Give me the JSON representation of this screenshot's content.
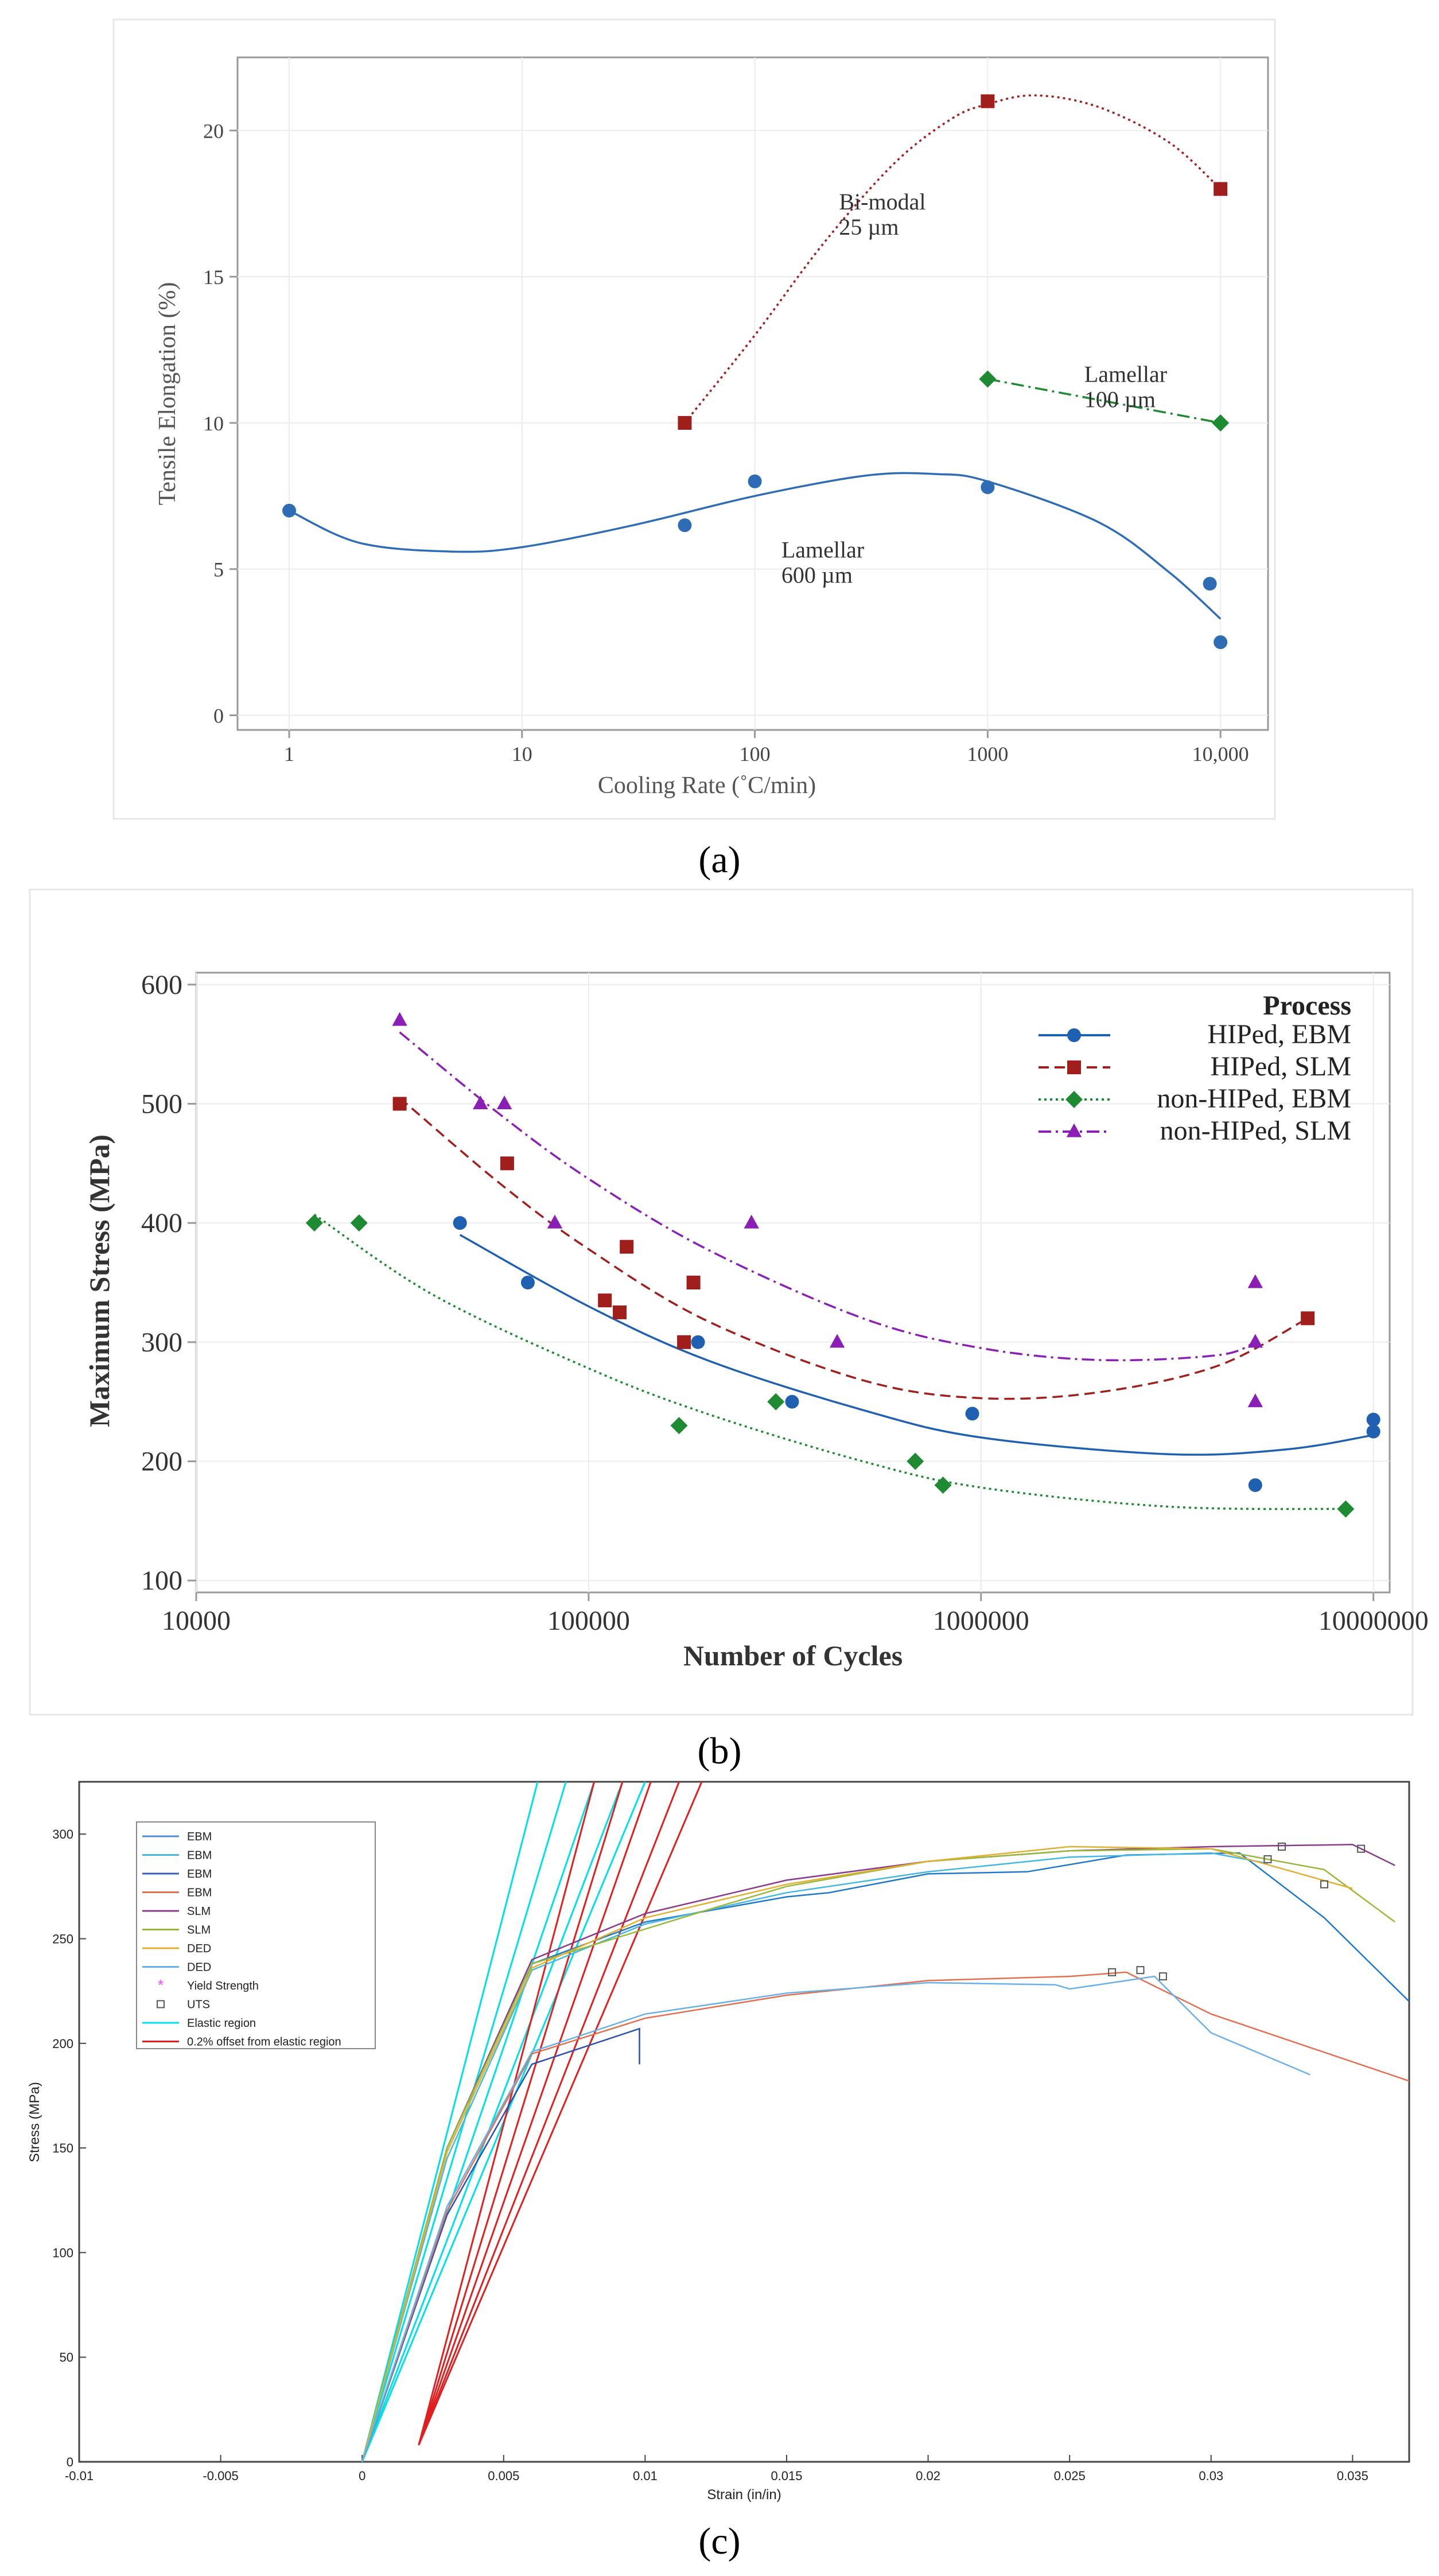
{
  "chart_data": [
    {
      "type": "scatter",
      "panel_label": "(a)",
      "xlabel": "Cooling Rate (˚C/min)",
      "ylabel": "Tensile Elongation (%)",
      "xscale": "log",
      "xlim": [
        0.6,
        16000
      ],
      "ylim": [
        -0.5,
        22.5
      ],
      "xticks": [
        {
          "v": 1,
          "label": "1"
        },
        {
          "v": 10,
          "label": "10"
        },
        {
          "v": 100,
          "label": "100"
        },
        {
          "v": 1000,
          "label": "1000"
        },
        {
          "v": 10000,
          "label": "10,000"
        }
      ],
      "yticks": [
        0,
        5,
        10,
        15,
        20
      ],
      "series": [
        {
          "name": "Lamellar 600 µm",
          "color": "#2e6db6",
          "marker": "circle",
          "line": "solid",
          "points": [
            [
              1,
              7
            ],
            [
              50,
              6.5
            ],
            [
              100,
              8
            ],
            [
              1000,
              7.8
            ],
            [
              9000,
              4.5
            ],
            [
              10000,
              2.5
            ]
          ],
          "curve": [
            [
              1,
              7
            ],
            [
              2,
              5.9
            ],
            [
              5,
              5.6
            ],
            [
              10,
              5.75
            ],
            [
              30,
              6.5
            ],
            [
              100,
              7.5
            ],
            [
              300,
              8.2
            ],
            [
              600,
              8.25
            ],
            [
              1000,
              8
            ],
            [
              3000,
              6.6
            ],
            [
              6000,
              4.9
            ],
            [
              10000,
              3.3
            ]
          ]
        },
        {
          "name": "Bi-modal 25 µm",
          "color": "#a01f1c",
          "marker": "square",
          "line": "dotted",
          "points": [
            [
              50,
              10
            ],
            [
              1000,
              21
            ],
            [
              10000,
              18
            ]
          ],
          "curve": [
            [
              50,
              10
            ],
            [
              100,
              13
            ],
            [
              200,
              16.2
            ],
            [
              400,
              18.9
            ],
            [
              700,
              20.4
            ],
            [
              1000,
              20.9
            ],
            [
              1600,
              21.2
            ],
            [
              3000,
              20.8
            ],
            [
              6000,
              19.6
            ],
            [
              10000,
              18
            ]
          ]
        },
        {
          "name": "Lamellar 100 µm",
          "color": "#1e8a32",
          "marker": "diamond",
          "line": "dashdot",
          "points": [
            [
              1000,
              11.5
            ],
            [
              10000,
              10
            ]
          ],
          "curve": [
            [
              1000,
              11.5
            ],
            [
              10000,
              10
            ]
          ]
        }
      ],
      "annotations": [
        {
          "lines": [
            "Bi-modal",
            "25 µm"
          ],
          "x": 230,
          "y": 17.3
        },
        {
          "lines": [
            "Lamellar",
            "100 µm"
          ],
          "x": 2600,
          "y": 11.4
        },
        {
          "lines": [
            "Lamellar",
            "600 µm"
          ],
          "x": 130,
          "y": 5.4
        }
      ]
    },
    {
      "type": "scatter",
      "panel_label": "(b)",
      "xlabel": "Number of Cycles",
      "ylabel": "Maximum Stress (MPa)",
      "xscale": "log",
      "xlim": [
        10000,
        11000000
      ],
      "ylim": [
        90,
        610
      ],
      "xticks": [
        {
          "v": 10000,
          "label": "10000"
        },
        {
          "v": 100000,
          "label": "100000"
        },
        {
          "v": 1000000,
          "label": "1000000"
        },
        {
          "v": 10000000,
          "label": "10000000"
        }
      ],
      "yticks": [
        100,
        200,
        300,
        400,
        500,
        600
      ],
      "legend_title": "Process",
      "legend_position": "top-right",
      "series": [
        {
          "name": "HIPed, EBM",
          "color": "#2060b0",
          "marker": "circle",
          "line": "solid",
          "points": [
            [
              47000,
              400
            ],
            [
              70000,
              350
            ],
            [
              190000,
              300
            ],
            [
              330000,
              250
            ],
            [
              950000,
              240
            ],
            [
              5000000,
              180
            ],
            [
              10000000,
              235
            ],
            [
              10000000,
              225
            ]
          ],
          "curve": [
            [
              47000,
              390
            ],
            [
              100000,
              330
            ],
            [
              200000,
              285
            ],
            [
              500000,
              243
            ],
            [
              1000000,
              220
            ],
            [
              3000000,
              206
            ],
            [
              6000000,
              210
            ],
            [
              10000000,
              222
            ]
          ]
        },
        {
          "name": "HIPed, SLM",
          "color": "#a01f1c",
          "marker": "square",
          "line": "dashed",
          "points": [
            [
              33000,
              500
            ],
            [
              62000,
              450
            ],
            [
              110000,
              335
            ],
            [
              120000,
              325
            ],
            [
              125000,
              380
            ],
            [
              175000,
              300
            ],
            [
              185000,
              350
            ],
            [
              6800000,
              320
            ]
          ],
          "curve": [
            [
              33000,
              505
            ],
            [
              60000,
              432
            ],
            [
              100000,
              378
            ],
            [
              200000,
              318
            ],
            [
              500000,
              268
            ],
            [
              1000000,
              253
            ],
            [
              2000000,
              258
            ],
            [
              4000000,
              280
            ],
            [
              6800000,
              320
            ]
          ]
        },
        {
          "name": "non-HIPed, EBM",
          "color": "#1e8a32",
          "marker": "diamond",
          "line": "dotted",
          "points": [
            [
              20000,
              400
            ],
            [
              26000,
              400
            ],
            [
              170000,
              230
            ],
            [
              300000,
              250
            ],
            [
              680000,
              200
            ],
            [
              800000,
              180
            ],
            [
              8500000,
              160
            ]
          ],
          "curve": [
            [
              20000,
              407
            ],
            [
              40000,
              340
            ],
            [
              100000,
              278
            ],
            [
              200000,
              240
            ],
            [
              500000,
              200
            ],
            [
              1000000,
              178
            ],
            [
              3000000,
              162
            ],
            [
              8500000,
              160
            ]
          ]
        },
        {
          "name": "non-HIPed, SLM",
          "color": "#8b1fb5",
          "marker": "triangle",
          "line": "dashdot",
          "points": [
            [
              33000,
              570
            ],
            [
              53000,
              500
            ],
            [
              61000,
              500
            ],
            [
              82000,
              400
            ],
            [
              260000,
              400
            ],
            [
              430000,
              300
            ],
            [
              5000000,
              350
            ],
            [
              5000000,
              300
            ],
            [
              5000000,
              250
            ]
          ],
          "curve": [
            [
              33000,
              560
            ],
            [
              60000,
              490
            ],
            [
              100000,
              437
            ],
            [
              200000,
              378
            ],
            [
              500000,
              320
            ],
            [
              1000000,
              295
            ],
            [
              2000000,
              285
            ],
            [
              4000000,
              289
            ],
            [
              5000000,
              300
            ]
          ]
        }
      ]
    },
    {
      "type": "line",
      "panel_label": "(c)",
      "xlabel": "Strain (in/in)",
      "ylabel": "Stress (MPa)",
      "xlim": [
        -0.01,
        0.037
      ],
      "ylim": [
        0,
        325
      ],
      "xticks": [
        {
          "v": -0.01,
          "label": "-0.01"
        },
        {
          "v": -0.005,
          "label": "-0.005"
        },
        {
          "v": 0,
          "label": "0"
        },
        {
          "v": 0.005,
          "label": "0.005"
        },
        {
          "v": 0.01,
          "label": "0.01"
        },
        {
          "v": 0.015,
          "label": "0.015"
        },
        {
          "v": 0.02,
          "label": "0.02"
        },
        {
          "v": 0.025,
          "label": "0.025"
        },
        {
          "v": 0.03,
          "label": "0.03"
        },
        {
          "v": 0.035,
          "label": "0.035"
        }
      ],
      "yticks": [
        0,
        50,
        100,
        150,
        200,
        250,
        300
      ],
      "legend_position": "top-left",
      "legend": [
        {
          "label": "EBM",
          "color": "#4f8fd0",
          "kind": "line"
        },
        {
          "label": "EBM",
          "color": "#44b8e0",
          "kind": "line"
        },
        {
          "label": "EBM",
          "color": "#3a5fb8",
          "kind": "line"
        },
        {
          "label": "EBM",
          "color": "#e07050",
          "kind": "line"
        },
        {
          "label": "SLM",
          "color": "#8a3a8a",
          "kind": "line"
        },
        {
          "label": "SLM",
          "color": "#9ab838",
          "kind": "line"
        },
        {
          "label": "DED",
          "color": "#e0b030",
          "kind": "line"
        },
        {
          "label": "DED",
          "color": "#6ab0e8",
          "kind": "line"
        },
        {
          "label": "Yield Strength",
          "color": "#ff40ff",
          "kind": "star"
        },
        {
          "label": "UTS",
          "color": "#555555",
          "kind": "square"
        },
        {
          "label": "Elastic region",
          "color": "#00e0e8",
          "kind": "line"
        },
        {
          "label": "0.2% offset from elastic region",
          "color": "#e02020",
          "kind": "line"
        }
      ],
      "series": [
        {
          "name": "EBM",
          "color": "#1f78c8",
          "points": [
            [
              0,
              0
            ],
            [
              0.003,
              150
            ],
            [
              0.006,
              238
            ],
            [
              0.01,
              258
            ],
            [
              0.015,
              270
            ],
            [
              0.0165,
              272
            ],
            [
              0.02,
              281
            ],
            [
              0.0235,
              282
            ],
            [
              0.027,
              290
            ],
            [
              0.031,
              291
            ],
            [
              0.034,
              260
            ],
            [
              0.037,
              220
            ]
          ]
        },
        {
          "name": "EBM",
          "color": "#44b8e0",
          "points": [
            [
              0,
              0
            ],
            [
              0.003,
              145
            ],
            [
              0.006,
              235
            ],
            [
              0.01,
              257
            ],
            [
              0.015,
              272
            ],
            [
              0.02,
              282
            ],
            [
              0.025,
              289
            ],
            [
              0.03,
              291
            ],
            [
              0.032,
              286
            ]
          ]
        },
        {
          "name": "EBM",
          "color": "#2a4fb0",
          "points": [
            [
              0,
              0
            ],
            [
              0.003,
              118
            ],
            [
              0.006,
              190
            ],
            [
              0.0098,
              207
            ],
            [
              0.0098,
              190
            ]
          ]
        },
        {
          "name": "EBM",
          "color": "#e07050",
          "points": [
            [
              0,
              0
            ],
            [
              0.003,
              120
            ],
            [
              0.006,
              195
            ],
            [
              0.01,
              212
            ],
            [
              0.015,
              223
            ],
            [
              0.02,
              230
            ],
            [
              0.025,
              232
            ],
            [
              0.027,
              234
            ],
            [
              0.03,
              214
            ],
            [
              0.037,
              182
            ]
          ]
        },
        {
          "name": "SLM",
          "color": "#8a3a8a",
          "points": [
            [
              0,
              0
            ],
            [
              0.003,
              150
            ],
            [
              0.006,
              240
            ],
            [
              0.01,
              262
            ],
            [
              0.015,
              278
            ],
            [
              0.02,
              287
            ],
            [
              0.025,
              292
            ],
            [
              0.03,
              294
            ],
            [
              0.035,
              295
            ],
            [
              0.0365,
              285
            ]
          ]
        },
        {
          "name": "SLM",
          "color": "#9ab838",
          "points": [
            [
              0,
              0
            ],
            [
              0.003,
              150
            ],
            [
              0.006,
              238
            ],
            [
              0.0125,
              265
            ],
            [
              0.015,
              275
            ],
            [
              0.02,
              287
            ],
            [
              0.025,
              292
            ],
            [
              0.03,
              293
            ],
            [
              0.034,
              283
            ],
            [
              0.0365,
              258
            ]
          ]
        },
        {
          "name": "DED",
          "color": "#e0b030",
          "points": [
            [
              0,
              0
            ],
            [
              0.003,
              148
            ],
            [
              0.006,
              236
            ],
            [
              0.01,
              260
            ],
            [
              0.015,
              276
            ],
            [
              0.02,
              287
            ],
            [
              0.025,
              294
            ],
            [
              0.03,
              293
            ],
            [
              0.035,
              274
            ]
          ]
        },
        {
          "name": "DED",
          "color": "#6ab0e8",
          "points": [
            [
              0,
              0
            ],
            [
              0.003,
              122
            ],
            [
              0.006,
              196
            ],
            [
              0.01,
              214
            ],
            [
              0.015,
              224
            ],
            [
              0.02,
              229
            ],
            [
              0.0245,
              228
            ],
            [
              0.025,
              226
            ],
            [
              0.028,
              232
            ],
            [
              0.03,
              205
            ],
            [
              0.0335,
              185
            ]
          ]
        }
      ],
      "elastic_lines": [
        0.0062,
        0.0072,
        0.0082,
        0.0092,
        0.01
      ],
      "offset_lines": [
        0.0082,
        0.0092,
        0.0102,
        0.0112,
        0.012
      ],
      "uts_markers": [
        [
          0.0265,
          234
        ],
        [
          0.0275,
          235
        ],
        [
          0.0283,
          232
        ],
        [
          0.032,
          288
        ],
        [
          0.0325,
          294
        ],
        [
          0.034,
          276
        ],
        [
          0.0353,
          293
        ]
      ]
    }
  ]
}
